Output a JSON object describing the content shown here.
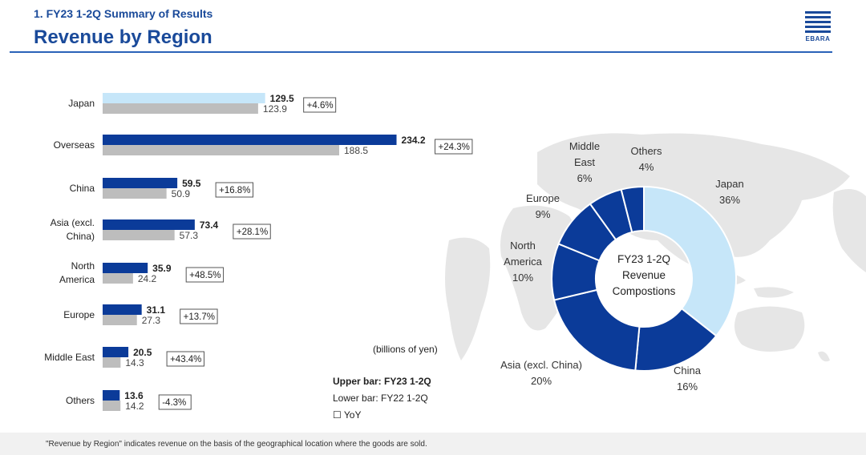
{
  "header": {
    "subtitle": "1. FY23 1-2Q Summary of Results",
    "title": "Revenue by Region",
    "logo_text": "EBARA"
  },
  "colors": {
    "accent": "#1a4a9a",
    "fy23_bar": "#0b3b99",
    "fy23_japan_bar": "#c6e6f9",
    "fy22_bar": "#bdbdbd",
    "donut_japan": "#c6e6f9",
    "donut_other": "#0b3b99",
    "map": "#e4e4e4"
  },
  "chart_data": [
    {
      "type": "bar",
      "orientation": "horizontal",
      "categories": [
        "Japan",
        "Overseas",
        "China",
        "Asia (excl. China)",
        "North America",
        "Europe",
        "Middle East",
        "Others"
      ],
      "category_lines": [
        [
          "Japan"
        ],
        [
          "Overseas"
        ],
        [
          "China"
        ],
        [
          "Asia (excl.",
          "China)"
        ],
        [
          "North",
          "America"
        ],
        [
          "Europe"
        ],
        [
          "Middle East"
        ],
        [
          "Others"
        ]
      ],
      "series": [
        {
          "name": "Upper bar: FY23 1-2Q",
          "values": [
            129.5,
            234.2,
            59.5,
            73.4,
            35.9,
            31.1,
            20.5,
            13.6
          ],
          "labels": [
            "129.5",
            "234.2",
            "59.5",
            "73.4",
            "35.9",
            "31.1",
            "20.5",
            "13.6"
          ]
        },
        {
          "name": "Lower bar: FY22 1-2Q",
          "values": [
            123.9,
            188.5,
            50.9,
            57.3,
            24.2,
            27.3,
            14.3,
            14.2
          ],
          "labels": [
            "123.9",
            "188.5",
            "50.9",
            "57.3",
            "24.2",
            "27.3",
            "14.3",
            "14.2"
          ]
        }
      ],
      "yoy": [
        "+4.6%",
        "+24.3%",
        "+16.8%",
        "+28.1%",
        "+48.5%",
        "+13.7%",
        "+43.4%",
        "-4.3%"
      ],
      "units": "(billions of yen)",
      "legend": {
        "upper": "Upper bar: FY23 1-2Q",
        "lower": "Lower bar: FY22 1-2Q",
        "yoy": "☐ YoY"
      }
    },
    {
      "type": "pie",
      "donut": true,
      "center_label": [
        "FY23 1-2Q",
        "Revenue",
        "Compostions"
      ],
      "slices": [
        {
          "label": [
            "Japan",
            "36%"
          ],
          "value": 36
        },
        {
          "label": [
            "China",
            "16%"
          ],
          "value": 16
        },
        {
          "label": [
            "Asia (excl. China)",
            "20%"
          ],
          "value": 20
        },
        {
          "label": [
            "North",
            "America",
            "10%"
          ],
          "value": 10
        },
        {
          "label": [
            "Europe",
            "9%"
          ],
          "value": 9
        },
        {
          "label": [
            "Middle",
            "East",
            "6%"
          ],
          "value": 6
        },
        {
          "label": [
            "Others",
            "4%"
          ],
          "value": 4
        }
      ]
    }
  ],
  "footnote": "\"Revenue by Region\" indicates revenue on the basis of the geographical location where the goods are sold."
}
